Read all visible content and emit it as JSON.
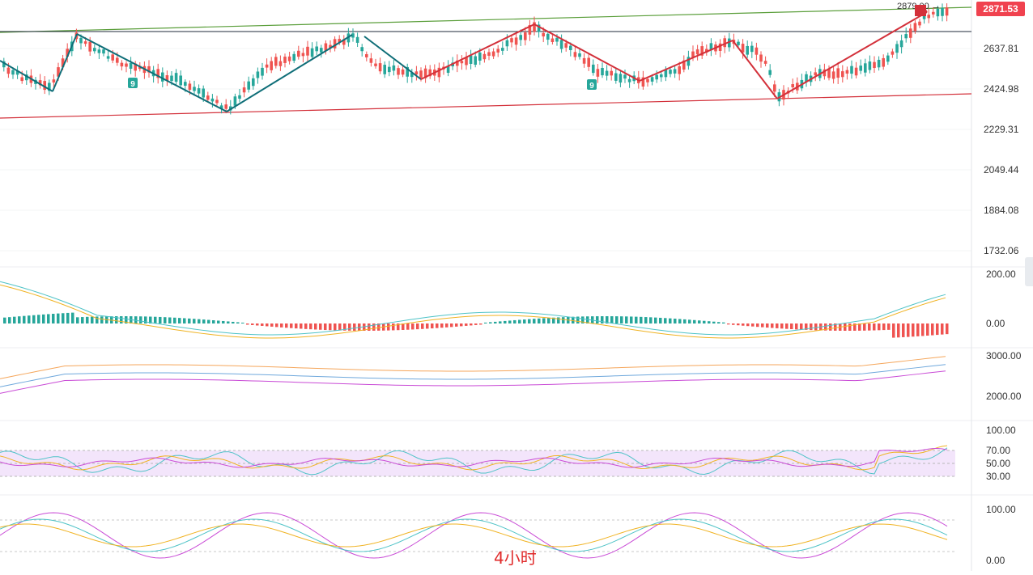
{
  "chart_data": {
    "type": "candlestick",
    "timeframe_label": "4小时",
    "price_axis": {
      "ticks": [
        "2637.81",
        "2424.98",
        "2229.31",
        "2049.44",
        "1884.08",
        "1732.06"
      ],
      "current_price": "2871.53",
      "high_marker": "2879.00"
    },
    "macd_panel": {
      "ticks": [
        "200.00",
        "0.00"
      ]
    },
    "boll_panel": {
      "ticks": [
        "3000.00",
        "2000.00"
      ]
    },
    "rsi_panel": {
      "ticks": [
        "100.00",
        "70.00",
        "50.00",
        "30.00"
      ]
    },
    "kdj_panel": {
      "ticks": [
        "100.00",
        "0.00"
      ]
    },
    "td_markers": [
      "9",
      "9"
    ],
    "colors": {
      "up": "#26a69a",
      "down": "#ef5350",
      "trend_up": "#0f6e78",
      "trend_red": "#d3303a",
      "channel_top": "#5a9e3a",
      "channel_bottom": "#d3303a"
    }
  }
}
